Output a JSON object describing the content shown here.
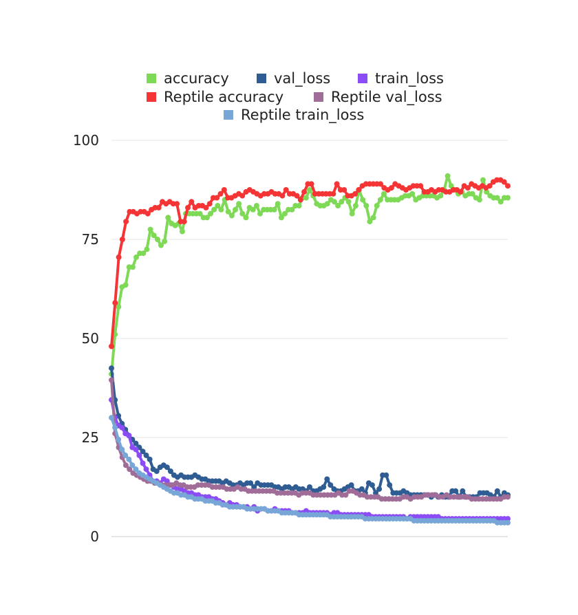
{
  "chart_data": {
    "type": "line",
    "title": "",
    "xlabel": "",
    "ylabel": "",
    "ylim": [
      0,
      100
    ],
    "yticks": [
      0,
      25,
      50,
      75,
      100
    ],
    "grid": true,
    "legend_position": "top-center",
    "x_count": 150,
    "series": [
      {
        "name": "accuracy",
        "color": "#7ed957",
        "values": [
          41,
          51,
          58,
          63,
          63.5,
          68,
          68,
          70.5,
          71.5,
          71.5,
          72.5,
          77.5,
          76,
          75,
          73.5,
          74.5,
          80.5,
          79,
          78.5,
          79,
          77,
          81.5,
          81.5,
          81.5,
          81.5,
          81.5,
          80.5,
          80.5,
          81.5,
          82.5,
          83.5,
          82.5,
          85,
          82,
          81,
          82.5,
          84,
          81.5,
          80.5,
          83,
          82.5,
          83.5,
          81.5,
          82.5,
          82.5,
          82.5,
          82.5,
          84,
          80.5,
          81.5,
          82.5,
          82.5,
          83.5,
          83.5,
          85.5,
          85.5,
          87.5,
          86,
          84,
          83.5,
          83.5,
          84,
          85,
          84.5,
          83.5,
          84.5,
          85.5,
          84.5,
          81.5,
          83.5,
          87.5,
          85,
          83.5,
          79.5,
          80.5,
          83.5,
          85,
          86.5,
          85,
          85,
          85,
          85,
          85.5,
          86,
          86,
          86.5,
          85,
          85.5,
          86,
          86,
          86,
          86,
          85.5,
          86,
          87.5,
          91,
          88.5,
          87.5,
          86.5,
          87,
          86,
          86.5,
          86.5,
          85.5,
          85,
          90,
          87,
          86,
          85.5,
          85.5,
          84.5,
          85.5,
          85.5
        ]
      },
      {
        "name": "val_loss",
        "color": "#2f5d93",
        "values": [
          42.5,
          34.5,
          30.5,
          28.5,
          27,
          25.5,
          24.5,
          23.5,
          22.5,
          21.5,
          20.5,
          19.5,
          17,
          16.5,
          17.5,
          18,
          17.5,
          16.5,
          15.5,
          15,
          15.5,
          15,
          15,
          15,
          15.5,
          15,
          14.5,
          14.5,
          14,
          14,
          14,
          14,
          13.5,
          14,
          13.5,
          13,
          13,
          13.5,
          13,
          13.5,
          13.5,
          12.5,
          13.5,
          13,
          13,
          13,
          13,
          12.5,
          12.5,
          12,
          12.5,
          12.5,
          12,
          12.5,
          12,
          12,
          11.5,
          12.5,
          11.5,
          11.5,
          12,
          12.5,
          14.5,
          13,
          12,
          11.5,
          11.5,
          12,
          12.5,
          13,
          11.5,
          11.5,
          12,
          11,
          13.5,
          13,
          11,
          12,
          15.5,
          15.5,
          13,
          11,
          11,
          11,
          11.5,
          11,
          10.5,
          10.5,
          10.5,
          10.5,
          10.5,
          10.5,
          10,
          10.5,
          10,
          10.5,
          10,
          10,
          11.5,
          11.5,
          10,
          11.5,
          10,
          10,
          10,
          10,
          11,
          11,
          11,
          10.5,
          10,
          11.5,
          10,
          11,
          10.5
        ]
      },
      {
        "name": "train_loss",
        "color": "#8b4cf5",
        "values": [
          34.5,
          30,
          28,
          27.5,
          26,
          25.5,
          22.5,
          22,
          20.5,
          18.5,
          17,
          15.5,
          14,
          14,
          13.5,
          14.5,
          14,
          13,
          12.5,
          12,
          12,
          11.5,
          11,
          11,
          10.5,
          10.5,
          10,
          10,
          10,
          9.5,
          9.5,
          9,
          8.5,
          8,
          8.5,
          8,
          8,
          7.5,
          7.5,
          7.5,
          7,
          7.5,
          6.5,
          7,
          7,
          6.5,
          6.5,
          7,
          6.5,
          6.5,
          6.5,
          6.5,
          6,
          6,
          6,
          6,
          6.5,
          6,
          6,
          6,
          6,
          6,
          6,
          5.5,
          6,
          6,
          5.5,
          5.5,
          5.5,
          5.5,
          5.5,
          5.5,
          5.5,
          5.5,
          5.5,
          5,
          5,
          5,
          5,
          5,
          5,
          5,
          5,
          5,
          5,
          4.5,
          5,
          5,
          5,
          5,
          5,
          5,
          5,
          5,
          5,
          4.5,
          4.5,
          4.5,
          4.5,
          4.5,
          4.5,
          4.5,
          4.5,
          4.5,
          4.5,
          4.5,
          4.5,
          4.5,
          4.5,
          4.5,
          4.5,
          4.5,
          4.5,
          4.5,
          4.5
        ]
      },
      {
        "name": "Reptile accuracy",
        "color": "#f53535",
        "values": [
          48,
          59,
          70.5,
          75,
          79.5,
          82,
          82,
          81.5,
          82,
          82,
          81.5,
          82.5,
          83,
          83,
          84.5,
          84,
          84.5,
          84,
          84,
          79.5,
          79.5,
          83,
          84.5,
          83,
          83.5,
          83.5,
          83,
          84,
          85.5,
          85.5,
          86.5,
          87.5,
          85.5,
          85.5,
          86,
          86.5,
          86,
          87,
          87.5,
          87,
          86.5,
          86,
          86.5,
          86.5,
          87,
          86.5,
          86.5,
          86,
          87.5,
          86.5,
          86.5,
          86,
          85,
          87,
          89,
          89,
          86.5,
          86.5,
          86.5,
          86.5,
          86.5,
          86.5,
          89,
          87.5,
          87.5,
          86,
          86,
          86.5,
          87.5,
          88.5,
          89,
          89,
          89,
          89,
          89,
          88,
          87.5,
          88,
          89,
          88.5,
          88,
          87.5,
          88,
          88.5,
          88.5,
          88.5,
          87,
          87,
          87.5,
          87,
          87.5,
          87.5,
          87,
          87,
          87.5,
          87.5,
          87,
          88.5,
          88,
          89,
          88.5,
          88,
          88.5,
          88,
          88.5,
          89.5,
          90,
          90,
          89.5,
          88.5
        ]
      },
      {
        "name": "Reptile val_loss",
        "color": "#a06d99",
        "values": [
          39.5,
          26,
          22.5,
          20,
          18,
          17,
          16,
          15.5,
          15,
          14.5,
          14,
          14,
          13.5,
          13.5,
          13,
          13,
          13,
          13,
          13.5,
          13,
          13,
          12.5,
          12.5,
          12.5,
          13,
          13,
          13,
          13,
          12.5,
          12.5,
          12.5,
          12.5,
          12,
          12,
          12,
          12.5,
          12,
          12,
          11.5,
          11.5,
          11.5,
          11.5,
          11.5,
          11.5,
          11.5,
          11.5,
          11,
          11,
          11,
          11,
          11,
          11,
          10.5,
          11,
          11,
          11,
          10.5,
          10.5,
          10.5,
          10.5,
          10.5,
          10.5,
          10.5,
          11,
          10.5,
          10.5,
          11.5,
          11.5,
          11,
          10.5,
          10.5,
          10,
          10,
          10,
          10,
          9.5,
          9.5,
          9.5,
          9.5,
          9.5,
          9.5,
          10,
          10,
          9.5,
          10,
          10,
          10,
          10.5,
          10.5,
          10.5,
          10.5,
          10,
          10,
          10.5,
          10,
          10,
          10,
          10,
          10,
          10,
          9.5,
          9.5,
          9.5,
          9.5,
          9.5,
          9.5,
          9.5,
          9.5,
          9.5,
          10,
          10
        ]
      },
      {
        "name": "Reptile train_loss",
        "color": "#78a6d6",
        "values": [
          30,
          27.5,
          24.5,
          22,
          20.5,
          19.5,
          18,
          17,
          16,
          15.5,
          15,
          14.5,
          14,
          13.5,
          13,
          12.5,
          12,
          11.5,
          11,
          11,
          10.5,
          10.5,
          10,
          10,
          9.5,
          9.5,
          9.5,
          9,
          9,
          9,
          8.5,
          8.5,
          8,
          8,
          7.5,
          7.5,
          7.5,
          7.5,
          7.5,
          7,
          7,
          7,
          7,
          7,
          7,
          6.5,
          6.5,
          6.5,
          6.5,
          6,
          6,
          6,
          6,
          6,
          5.5,
          5.5,
          5.5,
          5.5,
          5.5,
          5.5,
          5.5,
          5.5,
          5.5,
          5,
          5,
          5,
          5,
          5,
          5,
          5,
          5,
          5,
          5,
          4.5,
          4.5,
          4.5,
          4.5,
          4.5,
          4.5,
          4.5,
          4.5,
          4.5,
          4.5,
          4.5,
          4.5,
          4.5,
          4.5,
          4,
          4,
          4,
          4,
          4,
          4,
          4,
          4,
          4,
          4,
          4,
          4,
          4,
          4,
          4,
          4,
          4,
          4,
          4,
          4,
          4,
          4,
          4,
          4,
          3.5,
          3.5,
          3.5,
          3.5
        ]
      }
    ]
  }
}
